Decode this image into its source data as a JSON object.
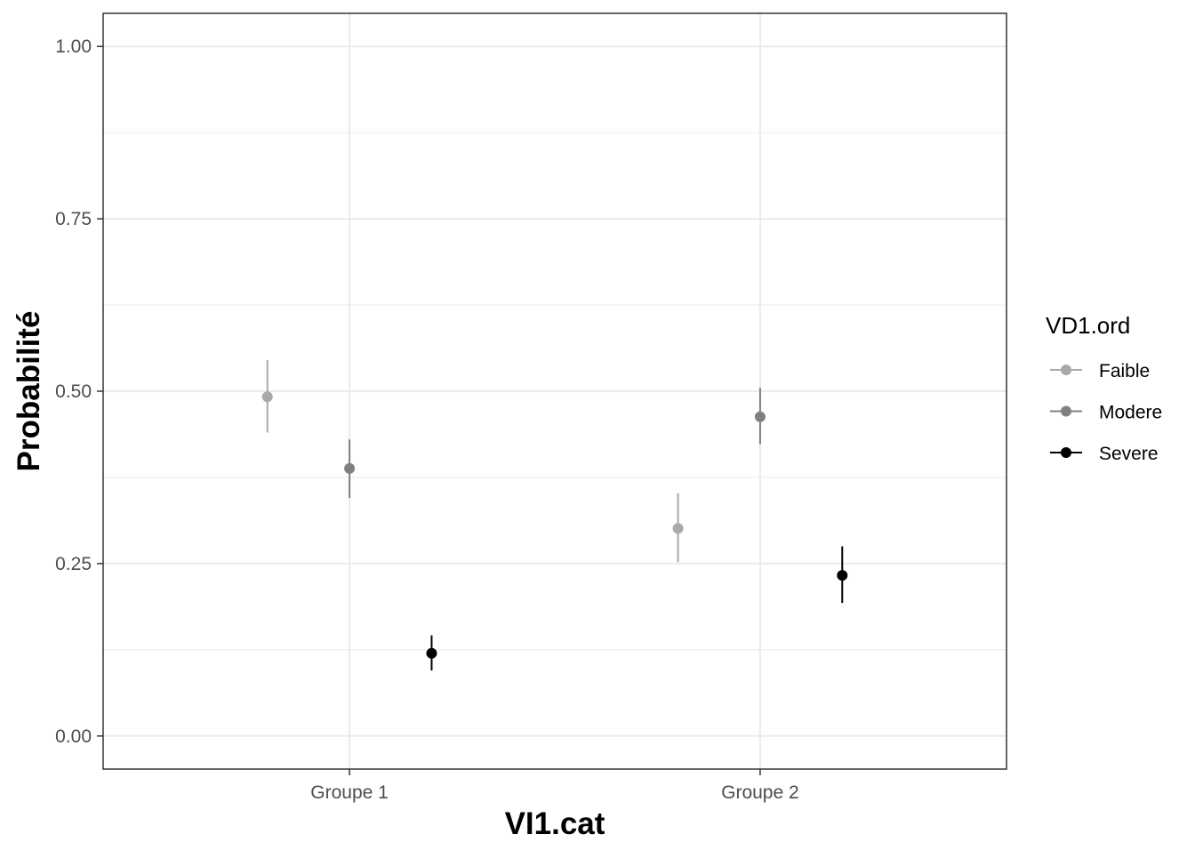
{
  "chart_data": {
    "type": "scatter",
    "subtype": "pointrange",
    "xlabel": "VI1.cat",
    "ylabel": "Probabilité",
    "categories": [
      "Groupe 1",
      "Groupe 2"
    ],
    "ylim": [
      -0.048,
      1.048
    ],
    "yticks": [
      0.0,
      0.25,
      0.5,
      0.75,
      1.0
    ],
    "ytick_labels": [
      "0.00",
      "0.25",
      "0.50",
      "0.75",
      "1.00"
    ],
    "grid": true,
    "legend": {
      "title": "VD1.ord",
      "placement": "right"
    },
    "series": [
      {
        "name": "Faible",
        "color": "#a9a9a9",
        "values": [
          0.492,
          0.301
        ],
        "lower": [
          0.44,
          0.252
        ],
        "upper": [
          0.545,
          0.352
        ]
      },
      {
        "name": "Modere",
        "color": "#808080",
        "values": [
          0.388,
          0.463
        ],
        "lower": [
          0.345,
          0.423
        ],
        "upper": [
          0.43,
          0.505
        ]
      },
      {
        "name": "Severe",
        "color": "#000000",
        "values": [
          0.12,
          0.233
        ],
        "lower": [
          0.095,
          0.193
        ],
        "upper": [
          0.146,
          0.275
        ]
      }
    ]
  }
}
